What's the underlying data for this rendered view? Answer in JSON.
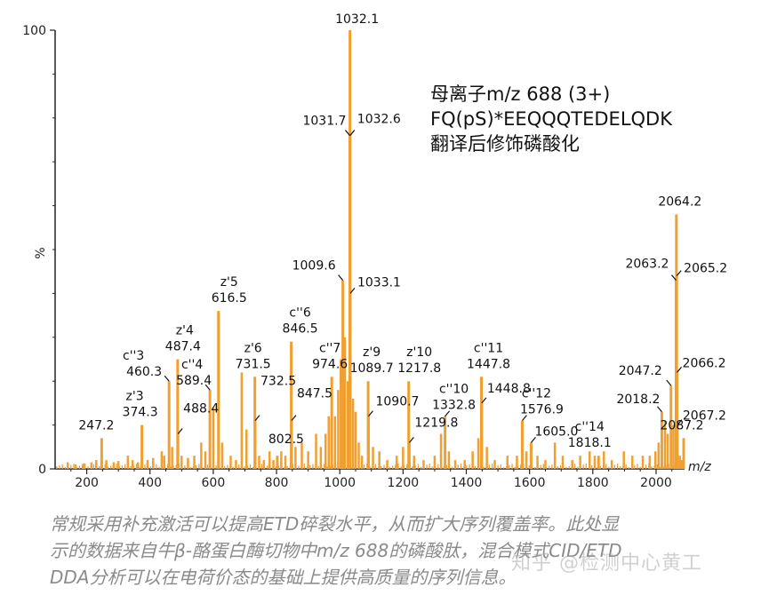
{
  "chart_data": {
    "type": "bar",
    "xlabel": "m/z",
    "ylabel": "%",
    "xlim": [
      100,
      2090
    ],
    "ylim": [
      0,
      100
    ],
    "x_ticks": [
      "200",
      "400",
      "600",
      "800",
      "1000",
      "1200",
      "1400",
      "1600",
      "1800",
      "2000"
    ],
    "y_ticks": [
      "0",
      "100"
    ],
    "bar_color": "#f0a030",
    "annotation_lines": [
      "母离子m/z 688 (3+)",
      "FQ(pS)*EEQQQTEDELQDK",
      "翻译后修饰磷酸化"
    ],
    "peaks": [
      {
        "mz": 247.2,
        "intensity": 7,
        "label": "247.2"
      },
      {
        "mz": 374.3,
        "intensity": 10,
        "label": "374.3",
        "ion": "z'3"
      },
      {
        "mz": 460.3,
        "intensity": 20,
        "label": "460.3",
        "ion": "c''3"
      },
      {
        "mz": 487.4,
        "intensity": 25,
        "label": "487.4",
        "ion": "z'4"
      },
      {
        "mz": 488.4,
        "intensity": 8,
        "label": "488.4"
      },
      {
        "mz": 589.4,
        "intensity": 18,
        "label": "589.4",
        "ion": "c''4"
      },
      {
        "mz": 616.5,
        "intensity": 36,
        "label": "616.5",
        "ion": "z'5"
      },
      {
        "mz": 731.5,
        "intensity": 21,
        "label": "731.5",
        "ion": "z'6"
      },
      {
        "mz": 732.5,
        "intensity": 11,
        "label": "732.5"
      },
      {
        "mz": 802.5,
        "intensity": 3,
        "label": "802.5"
      },
      {
        "mz": 846.5,
        "intensity": 29,
        "label": "846.5",
        "ion": "c''6"
      },
      {
        "mz": 847.5,
        "intensity": 11,
        "label": "847.5"
      },
      {
        "mz": 974.6,
        "intensity": 21,
        "label": "974.6",
        "ion": "c''7"
      },
      {
        "mz": 1009.6,
        "intensity": 43,
        "label": "1009.6"
      },
      {
        "mz": 1031.7,
        "intensity": 76,
        "label": "1031.7"
      },
      {
        "mz": 1032.1,
        "intensity": 100,
        "label": "1032.1"
      },
      {
        "mz": 1032.6,
        "intensity": 76,
        "label": "1032.6"
      },
      {
        "mz": 1033.1,
        "intensity": 40,
        "label": "1033.1"
      },
      {
        "mz": 1089.7,
        "intensity": 20,
        "label": "1089.7",
        "ion": "z'9"
      },
      {
        "mz": 1090.7,
        "intensity": 12,
        "label": "1090.7"
      },
      {
        "mz": 1217.8,
        "intensity": 20,
        "label": "1217.8",
        "ion": "z'10"
      },
      {
        "mz": 1219.8,
        "intensity": 6,
        "label": "1219.8"
      },
      {
        "mz": 1332.8,
        "intensity": 12,
        "label": "1332.8",
        "ion": "c''10"
      },
      {
        "mz": 1447.8,
        "intensity": 21,
        "label": "1447.8",
        "ion": "c''11"
      },
      {
        "mz": 1448.8,
        "intensity": 15,
        "label": "1448.8"
      },
      {
        "mz": 1576.9,
        "intensity": 11,
        "label": "1576.9",
        "ion": "c''12"
      },
      {
        "mz": 1605.0,
        "intensity": 6,
        "label": "1605.0"
      },
      {
        "mz": 1818.1,
        "intensity": 3,
        "label": "1818.1",
        "ion": "c''14"
      },
      {
        "mz": 2018.2,
        "intensity": 13,
        "label": "2018.2"
      },
      {
        "mz": 2047.2,
        "intensity": 19,
        "label": "2047.2"
      },
      {
        "mz": 2063.2,
        "intensity": 43,
        "label": "2063.2"
      },
      {
        "mz": 2064.2,
        "intensity": 58,
        "label": "2064.2"
      },
      {
        "mz": 2065.2,
        "intensity": 44,
        "label": "2065.2"
      },
      {
        "mz": 2066.2,
        "intensity": 22,
        "label": "2066.2"
      },
      {
        "mz": 2067.2,
        "intensity": 10,
        "label": "2067.2"
      },
      {
        "mz": 2087.2,
        "intensity": 7,
        "label": "2087.2"
      }
    ],
    "minor_peaks": [
      [
        140,
        1.5
      ],
      [
        165,
        1
      ],
      [
        190,
        1.2
      ],
      [
        215,
        1.5
      ],
      [
        230,
        2
      ],
      [
        262,
        2
      ],
      [
        285,
        1.5
      ],
      [
        300,
        1.8
      ],
      [
        330,
        3
      ],
      [
        345,
        2
      ],
      [
        362,
        1.5
      ],
      [
        392,
        2
      ],
      [
        410,
        2.5
      ],
      [
        437,
        4
      ],
      [
        445,
        3
      ],
      [
        470,
        5
      ],
      [
        500,
        3
      ],
      [
        520,
        2.5
      ],
      [
        540,
        3
      ],
      [
        562,
        6
      ],
      [
        575,
        4
      ],
      [
        600,
        14
      ],
      [
        628,
        6
      ],
      [
        655,
        3
      ],
      [
        672,
        2
      ],
      [
        690,
        22
      ],
      [
        705,
        9
      ],
      [
        745,
        3
      ],
      [
        760,
        2
      ],
      [
        778,
        4
      ],
      [
        790,
        2
      ],
      [
        815,
        4
      ],
      [
        828,
        3
      ],
      [
        860,
        5
      ],
      [
        880,
        6
      ],
      [
        900,
        4
      ],
      [
        925,
        8
      ],
      [
        940,
        5
      ],
      [
        955,
        8
      ],
      [
        965,
        12
      ],
      [
        985,
        12
      ],
      [
        995,
        18
      ],
      [
        1003,
        25
      ],
      [
        1016,
        30
      ],
      [
        1025,
        20
      ],
      [
        1042,
        16
      ],
      [
        1050,
        13
      ],
      [
        1060,
        6
      ],
      [
        1070,
        3
      ],
      [
        1105,
        5
      ],
      [
        1125,
        4
      ],
      [
        1150,
        2
      ],
      [
        1180,
        3
      ],
      [
        1200,
        5
      ],
      [
        1235,
        3
      ],
      [
        1265,
        2
      ],
      [
        1300,
        3
      ],
      [
        1320,
        8
      ],
      [
        1345,
        4
      ],
      [
        1365,
        2
      ],
      [
        1395,
        2
      ],
      [
        1420,
        4
      ],
      [
        1438,
        7
      ],
      [
        1465,
        5
      ],
      [
        1490,
        2
      ],
      [
        1530,
        3
      ],
      [
        1560,
        3
      ],
      [
        1590,
        4
      ],
      [
        1625,
        3
      ],
      [
        1650,
        2
      ],
      [
        1680,
        6
      ],
      [
        1705,
        3
      ],
      [
        1735,
        2
      ],
      [
        1760,
        3
      ],
      [
        1790,
        4
      ],
      [
        1806,
        3
      ],
      [
        1835,
        4
      ],
      [
        1860,
        2
      ],
      [
        1898,
        4
      ],
      [
        1925,
        3
      ],
      [
        1958,
        3
      ],
      [
        1980,
        3
      ],
      [
        1998,
        4
      ],
      [
        2008,
        6
      ],
      [
        2028,
        11
      ],
      [
        2037,
        8
      ],
      [
        2055,
        10
      ],
      [
        2075,
        3
      ],
      [
        2080,
        2
      ]
    ]
  },
  "caption": {
    "line1": "常规采用补充激活可以提高ETD碎裂水平，从而扩大序列覆盖率。此处显",
    "line2": "示的数据来自牛β-酪蛋白酶切物中m/z 688的磷酸肽，混合模式CID/ETD",
    "line3": "DDA分析可以在电荷价态的基础上提供高质量的序列信息。"
  },
  "watermark": "知乎 @检测中心黄工"
}
